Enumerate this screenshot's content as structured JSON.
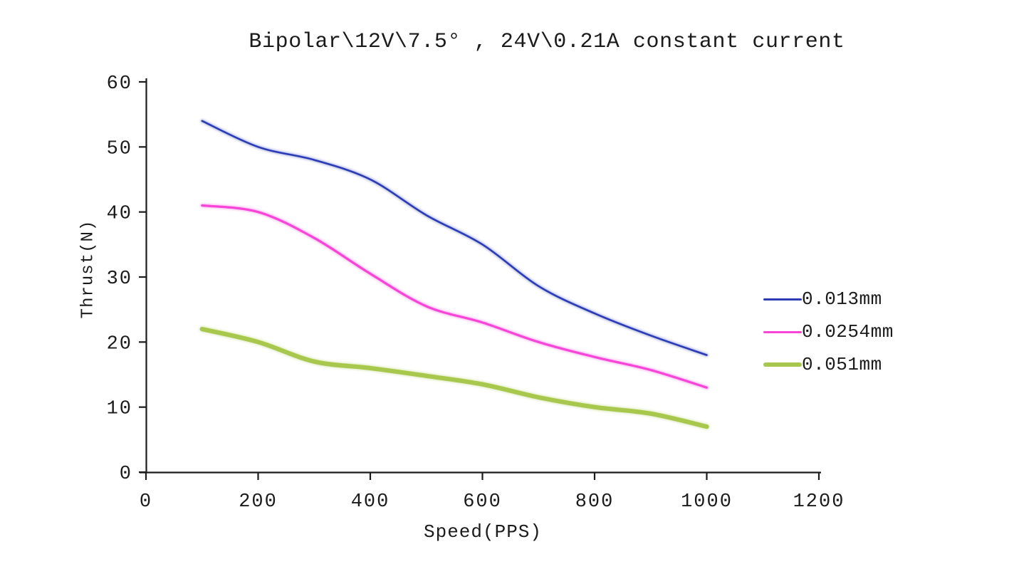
{
  "chart_data": {
    "type": "line",
    "title": "Bipolar\\12V\\7.5° , 24V\\0.21A constant current",
    "xlabel": "Speed(PPS)",
    "ylabel": "Thrust(N)",
    "xlim": [
      0,
      1200
    ],
    "ylim": [
      0,
      60
    ],
    "xticks": [
      0,
      200,
      400,
      600,
      800,
      1000,
      1200
    ],
    "yticks": [
      0,
      10,
      20,
      30,
      40,
      50,
      60
    ],
    "grid": false,
    "legend_position": "right",
    "x": [
      100,
      200,
      300,
      400,
      500,
      600,
      700,
      800,
      900,
      1000
    ],
    "series": [
      {
        "name": "0.013mm",
        "color": "#2b3cb5",
        "line_width": 2.6,
        "values": [
          54,
          50,
          48,
          45,
          39.5,
          35,
          28.6,
          24.4,
          21,
          18
        ]
      },
      {
        "name": "0.0254mm",
        "color": "#f944d8",
        "line_width": 3.2,
        "values": [
          41,
          40,
          36,
          30.5,
          25.5,
          23,
          20,
          17.7,
          15.7,
          13
        ]
      },
      {
        "name": "0.051mm",
        "color": "#a7c84d",
        "line_width": 6.2,
        "values": [
          22,
          20,
          17,
          16,
          14.8,
          13.5,
          11.5,
          10,
          9,
          7
        ]
      }
    ],
    "axis_color": "#1b1b1b",
    "text_color": "#1b1b1b"
  }
}
